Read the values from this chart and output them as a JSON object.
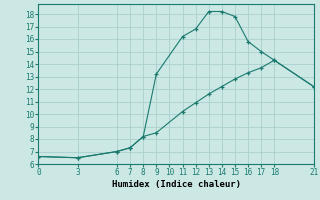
{
  "line1_x": [
    0,
    3,
    6,
    7,
    8,
    9,
    11,
    12,
    13,
    14,
    15,
    16,
    17,
    18,
    21
  ],
  "line1_y": [
    6.6,
    6.5,
    7.0,
    7.3,
    8.2,
    13.2,
    16.2,
    16.8,
    18.2,
    18.2,
    17.8,
    15.8,
    15.0,
    14.3,
    12.2
  ],
  "line2_x": [
    0,
    3,
    6,
    7,
    8,
    9,
    11,
    12,
    13,
    14,
    15,
    16,
    17,
    18,
    21
  ],
  "line2_y": [
    6.6,
    6.5,
    7.0,
    7.3,
    8.2,
    8.5,
    10.2,
    10.9,
    11.6,
    12.2,
    12.8,
    13.3,
    13.7,
    14.3,
    12.2
  ],
  "color": "#1a7a6e",
  "bg_color": "#cce8e5",
  "grid_color": "#aacfcc",
  "xlabel": "Humidex (Indice chaleur)",
  "xlim": [
    0,
    21
  ],
  "ylim": [
    6,
    18.8
  ],
  "xticks": [
    0,
    3,
    6,
    7,
    8,
    9,
    10,
    11,
    12,
    13,
    14,
    15,
    16,
    17,
    18,
    21
  ],
  "yticks": [
    6,
    7,
    8,
    9,
    10,
    11,
    12,
    13,
    14,
    15,
    16,
    17,
    18
  ],
  "tick_fontsize": 5.5,
  "xlabel_fontsize": 6.5,
  "marker": "+"
}
